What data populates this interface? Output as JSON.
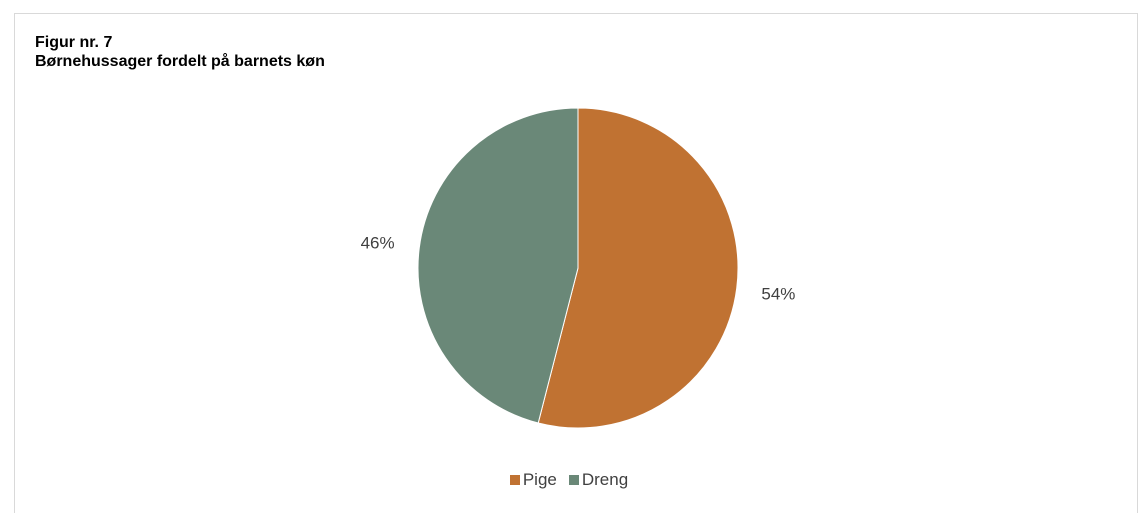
{
  "chart_data": {
    "type": "pie",
    "title": "Figur nr. 7",
    "subtitle": "Børnehussager fordelt på barnets køn",
    "categories": [
      "Pige",
      "Dreng"
    ],
    "values": [
      54,
      46
    ],
    "labels": [
      "54%",
      "46%"
    ],
    "colors": [
      "#c07232",
      "#6a8878"
    ],
    "legend_position": "bottom"
  }
}
